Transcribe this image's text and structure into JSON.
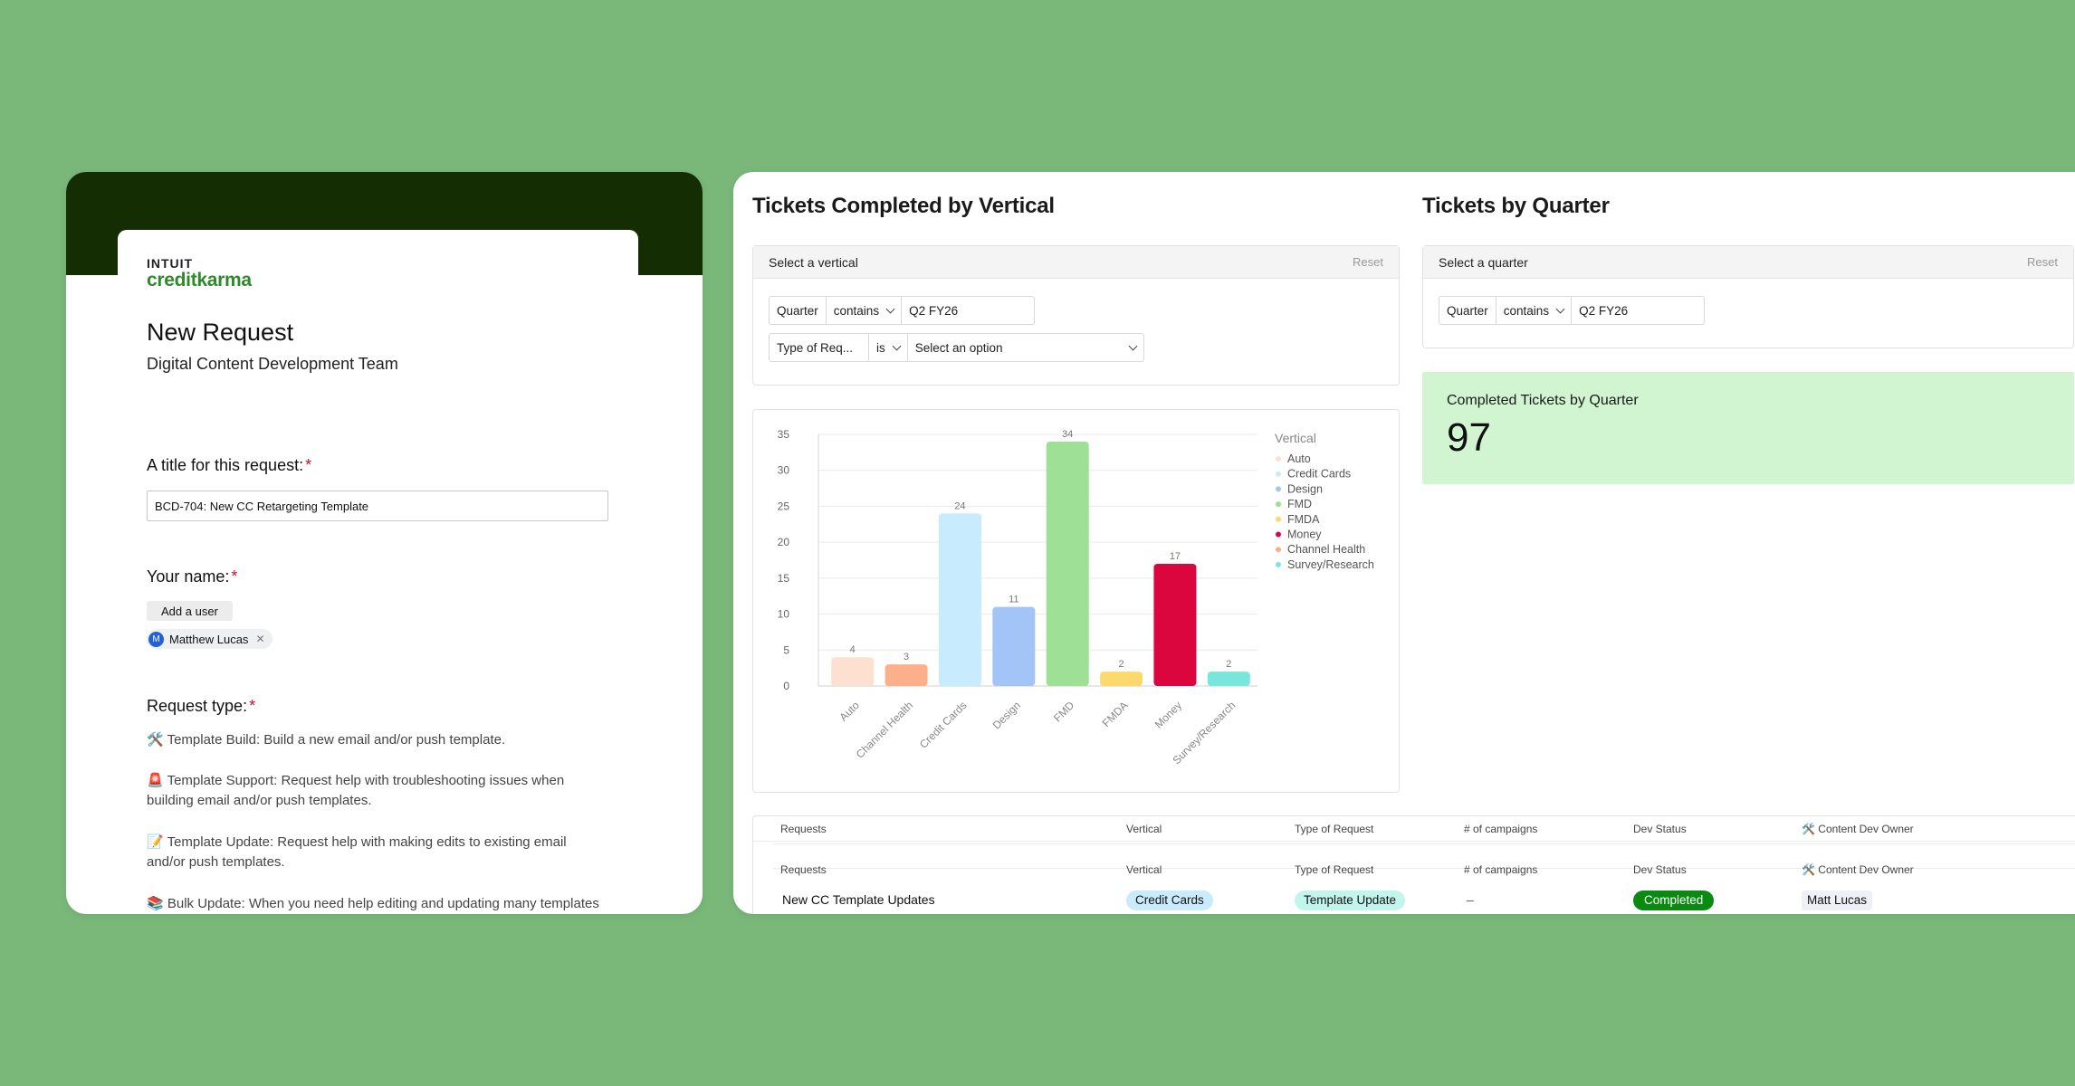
{
  "form": {
    "logo_top": "INTUIT",
    "logo_bottom": "creditkarma",
    "title": "New Request",
    "subtitle": "Digital Content Development Team",
    "q_title_label": "A title for this request:",
    "q_title_value": "BCD-704: New CC Retargeting Template",
    "q_name_label": "Your name:",
    "add_user_label": "Add a user",
    "user_initial": "M",
    "user_name": "Matthew Lucas",
    "q_type_label": "Request type:",
    "required_mark": "*",
    "options": [
      "🛠️ Template Build: Build a new email and/or push template.",
      "🚨 Template Support: Request help with troubleshooting issues when building email and/or push templates.",
      "📝 Template Update: Request help with making edits to existing email and/or push templates.",
      "📚 Bulk Update: When you need help editing and updating many templates"
    ]
  },
  "vertical_section": {
    "title": "Tickets Completed by Vertical",
    "filter_title": "Select a vertical",
    "reset": "Reset",
    "filter1": {
      "field": "Quarter",
      "op": "contains",
      "value": "Q2 FY26"
    },
    "filter2": {
      "field": "Type of Req...",
      "op": "is",
      "placeholder": "Select an option"
    }
  },
  "quarter_section": {
    "title": "Tickets by Quarter",
    "filter_title": "Select a quarter",
    "reset": "Reset",
    "filter1": {
      "field": "Quarter",
      "op": "contains",
      "value": "Q2 FY26"
    }
  },
  "kpi": {
    "label": "Completed Tickets by Quarter",
    "value": "97"
  },
  "chart_data": {
    "type": "bar",
    "categories": [
      "Auto",
      "Channel Health",
      "Credit Cards",
      "Design",
      "FMD",
      "FMDA",
      "Money",
      "Survey/Research"
    ],
    "values": [
      4,
      3,
      24,
      11,
      34,
      2,
      17,
      2
    ],
    "colors": [
      "#fde0d0",
      "#fbb08b",
      "#c8ebfd",
      "#a3c4f7",
      "#9ee095",
      "#fbd96d",
      "#dc063f",
      "#7ae5dc"
    ],
    "ylim": [
      0,
      35
    ],
    "yticks": [
      0,
      5,
      10,
      15,
      20,
      25,
      30,
      35
    ],
    "legend_title": "Vertical",
    "legend": [
      {
        "name": "Auto",
        "color": "#fde0d0"
      },
      {
        "name": "Credit Cards",
        "color": "#c8ebfd"
      },
      {
        "name": "Design",
        "color": "#a3c4f7"
      },
      {
        "name": "FMD",
        "color": "#9ee095"
      },
      {
        "name": "FMDA",
        "color": "#fbd96d"
      },
      {
        "name": "Money",
        "color": "#dc063f"
      },
      {
        "name": "Channel Health",
        "color": "#fbb08b"
      },
      {
        "name": "Survey/Research",
        "color": "#7ae5dc"
      }
    ],
    "legend_position": "right",
    "grid": true
  },
  "table": {
    "columns": [
      "Requests",
      "Vertical",
      "Type of Request",
      "# of campaigns",
      "Dev Status",
      "🛠️ Content Dev Owner"
    ],
    "rows": [
      {
        "request": "New CC Template Updates",
        "vertical": "Credit Cards",
        "type": "Template Update",
        "campaigns": "–",
        "status": "Completed",
        "owner": "Matt Lucas"
      }
    ]
  }
}
